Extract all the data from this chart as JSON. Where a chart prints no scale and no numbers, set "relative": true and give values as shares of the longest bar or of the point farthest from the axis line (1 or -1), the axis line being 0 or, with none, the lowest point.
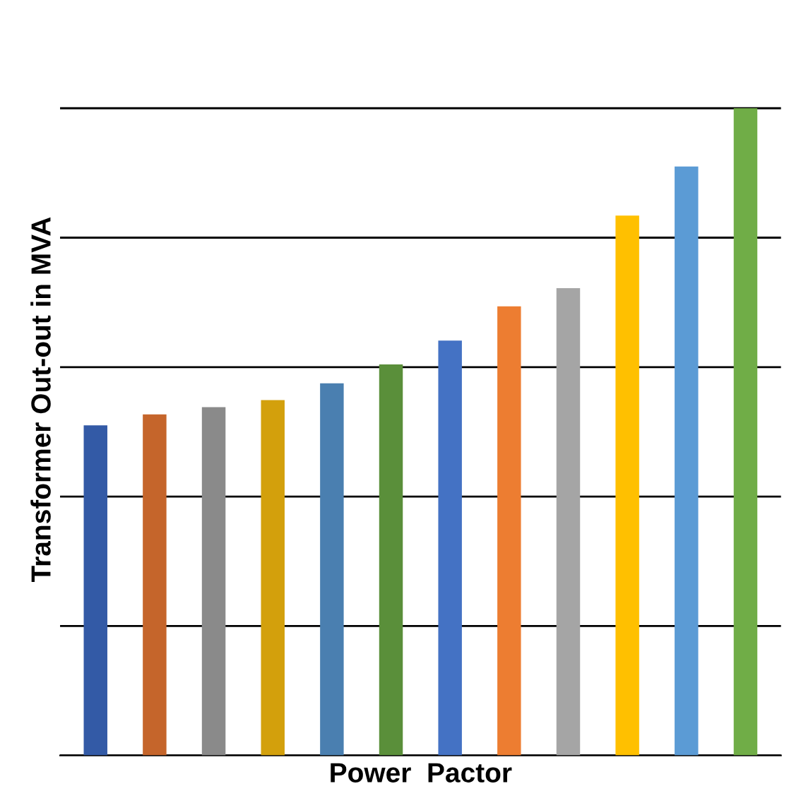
{
  "chart_data": {
    "type": "bar",
    "xlabel": "Power  Pactor",
    "ylabel": "Transformer Out-out in MVA",
    "relative": true,
    "grid": "y",
    "categories": [
      null,
      null,
      null,
      null,
      null,
      null,
      null,
      null,
      null,
      null,
      null,
      null
    ],
    "values": [
      0.51,
      0.527,
      0.538,
      0.549,
      0.575,
      0.604,
      0.641,
      0.694,
      0.722,
      0.834,
      0.91,
      1
    ],
    "colors": [
      "#335aa6",
      "#c5652b",
      "#8a8a8a",
      "#d3a00c",
      "#4a7fb0",
      "#5a8f3a",
      "#4472c4",
      "#ed7d31",
      "#a5a5a5",
      "#ffc000",
      "#5b9bd5",
      "#70ad47"
    ]
  }
}
